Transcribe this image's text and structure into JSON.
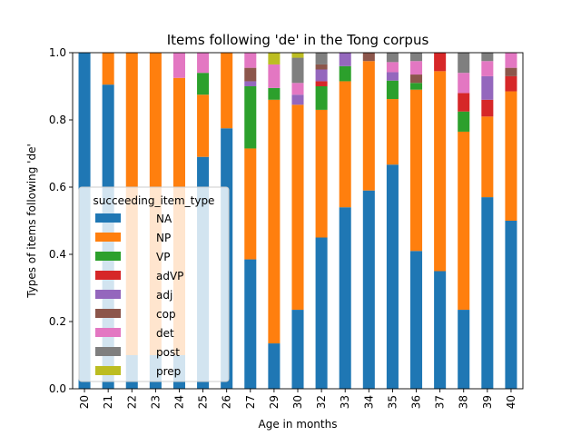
{
  "chart_data": {
    "type": "bar",
    "stacked": true,
    "title": "Items following 'de' in the Tong corpus",
    "xlabel": "Age in months",
    "ylabel": "Types of items following 'de'",
    "ylim": [
      0,
      1.0
    ],
    "yticks": [
      0.0,
      0.2,
      0.4,
      0.6,
      0.8,
      1.0
    ],
    "ytick_labels": [
      "0.0",
      "0.2",
      "0.4",
      "0.6",
      "0.8",
      "1.0"
    ],
    "categories": [
      "20",
      "21",
      "22",
      "23",
      "24",
      "25",
      "26",
      "27",
      "29",
      "30",
      "32",
      "33",
      "34",
      "35",
      "36",
      "37",
      "38",
      "39",
      "40"
    ],
    "legend": {
      "title": "succeeding_item_type",
      "placement": "center-left"
    },
    "series": [
      {
        "name": "NA",
        "color": "#1f77b4",
        "values": [
          1.0,
          0.905,
          0.1,
          0.1,
          0.1,
          0.69,
          0.775,
          0.385,
          0.135,
          0.235,
          0.45,
          0.54,
          0.59,
          0.667,
          0.41,
          0.35,
          0.235,
          0.57,
          0.5
        ]
      },
      {
        "name": "NP",
        "color": "#ff7f0e",
        "values": [
          0.0,
          0.095,
          0.9,
          0.9,
          0.825,
          0.185,
          0.225,
          0.33,
          0.725,
          0.61,
          0.38,
          0.375,
          0.385,
          0.195,
          0.48,
          0.595,
          0.53,
          0.24,
          0.385
        ]
      },
      {
        "name": "VP",
        "color": "#2ca02c",
        "values": [
          0,
          0,
          0,
          0,
          0,
          0.065,
          0,
          0.185,
          0.035,
          0,
          0.07,
          0.045,
          0,
          0.055,
          0.02,
          0,
          0.06,
          0,
          0
        ]
      },
      {
        "name": "adVP",
        "color": "#d62728",
        "values": [
          0,
          0,
          0,
          0,
          0,
          0,
          0,
          0,
          0,
          0,
          0.015,
          0,
          0,
          0,
          0,
          0.055,
          0.055,
          0.05,
          0.045
        ]
      },
      {
        "name": "adj",
        "color": "#9467bd",
        "values": [
          0,
          0,
          0,
          0,
          0,
          0,
          0,
          0.015,
          0,
          0.03,
          0.035,
          0.04,
          0,
          0.025,
          0,
          0,
          0,
          0.07,
          0
        ]
      },
      {
        "name": "cop",
        "color": "#8c564b",
        "values": [
          0,
          0,
          0,
          0,
          0,
          0,
          0,
          0.04,
          0,
          0,
          0.015,
          0,
          0.025,
          0,
          0.025,
          0,
          0,
          0,
          0.025
        ]
      },
      {
        "name": "det",
        "color": "#e377c2",
        "values": [
          0,
          0,
          0,
          0,
          0.075,
          0.06,
          0,
          0.045,
          0.07,
          0.035,
          0,
          0,
          0,
          0.03,
          0.04,
          0,
          0.06,
          0.045,
          0.045
        ]
      },
      {
        "name": "post",
        "color": "#7f7f7f",
        "values": [
          0,
          0,
          0,
          0,
          0,
          0,
          0,
          0,
          0,
          0.075,
          0.035,
          0,
          0,
          0.028,
          0.025,
          0,
          0.06,
          0.025,
          0
        ]
      },
      {
        "name": "prep",
        "color": "#bcbd22",
        "values": [
          0,
          0,
          0,
          0,
          0,
          0,
          0,
          0,
          0.035,
          0.015,
          0,
          0,
          0,
          0,
          0,
          0,
          0,
          0,
          0
        ]
      }
    ]
  }
}
